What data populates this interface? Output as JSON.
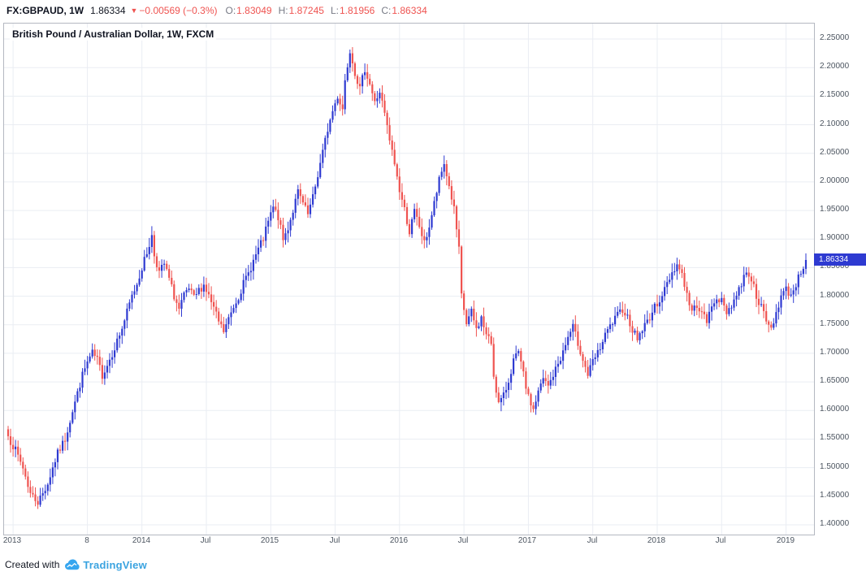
{
  "header": {
    "symbol": "FX:GBPAUD, 1W",
    "last": "1.86334",
    "change_arrow": "▼",
    "change": "−0.00569 (−0.3%)",
    "ohlc": [
      {
        "k": "O:",
        "v": "1.83049"
      },
      {
        "k": "H:",
        "v": "1.87245"
      },
      {
        "k": "L:",
        "v": "1.81956"
      },
      {
        "k": "C:",
        "v": "1.86334"
      }
    ]
  },
  "pane": {
    "legend": "British Pound / Australian Dollar, 1W, FXCM"
  },
  "price_axis": {
    "labels": [
      "2.25000",
      "2.20000",
      "2.15000",
      "2.10000",
      "2.05000",
      "2.00000",
      "1.95000",
      "1.90000",
      "1.85000",
      "1.80000",
      "1.75000",
      "1.70000",
      "1.65000",
      "1.60000",
      "1.55000",
      "1.50000",
      "1.45000",
      "1.40000"
    ],
    "badge": "1.86334"
  },
  "time_axis": {
    "ticks": [
      {
        "label": "2013",
        "week": 2
      },
      {
        "label": "8",
        "week": 32
      },
      {
        "label": "2014",
        "week": 54
      },
      {
        "label": "Jul",
        "week": 80
      },
      {
        "label": "2015",
        "week": 106
      },
      {
        "label": "Jul",
        "week": 132
      },
      {
        "label": "2016",
        "week": 158
      },
      {
        "label": "Jul",
        "week": 184
      },
      {
        "label": "2017",
        "week": 210
      },
      {
        "label": "Jul",
        "week": 236
      },
      {
        "label": "2018",
        "week": 262
      },
      {
        "label": "Jul",
        "week": 288
      },
      {
        "label": "2019",
        "week": 314
      }
    ]
  },
  "footer": {
    "created_with": "Created with",
    "brand": "TradingView"
  },
  "chart_data": {
    "type": "candlestick",
    "title": "British Pound / Australian Dollar",
    "symbol": "FX:GBPAUD",
    "timeframe": "1W",
    "exchange": "FXCM",
    "price_min": 1.4,
    "price_max": 2.25,
    "grid_step": 0.05,
    "weeks": 323,
    "up_color": "#2e3ad1",
    "down_color": "#ef5350",
    "grid_color": "#eaedf3",
    "last_bar": {
      "open": 1.83049,
      "high": 1.87245,
      "low": 1.81956,
      "close": 1.86334
    },
    "last_close": 1.86334,
    "anchors": [
      [
        0,
        1.555
      ],
      [
        3,
        1.53
      ],
      [
        6,
        1.5
      ],
      [
        9,
        1.455
      ],
      [
        12,
        1.44
      ],
      [
        14,
        1.455
      ],
      [
        16,
        1.472
      ],
      [
        18,
        1.5
      ],
      [
        20,
        1.525
      ],
      [
        23,
        1.55
      ],
      [
        26,
        1.6
      ],
      [
        28,
        1.63
      ],
      [
        30,
        1.662
      ],
      [
        32,
        1.684
      ],
      [
        34,
        1.7
      ],
      [
        36,
        1.688
      ],
      [
        38,
        1.662
      ],
      [
        40,
        1.68
      ],
      [
        42,
        1.7
      ],
      [
        44,
        1.722
      ],
      [
        46,
        1.744
      ],
      [
        48,
        1.772
      ],
      [
        50,
        1.8
      ],
      [
        52,
        1.822
      ],
      [
        54,
        1.85
      ],
      [
        56,
        1.876
      ],
      [
        58,
        1.905
      ],
      [
        59,
        1.872
      ],
      [
        61,
        1.842
      ],
      [
        63,
        1.856
      ],
      [
        65,
        1.83
      ],
      [
        67,
        1.8
      ],
      [
        69,
        1.776
      ],
      [
        71,
        1.8
      ],
      [
        73,
        1.812
      ],
      [
        75,
        1.796
      ],
      [
        77,
        1.81
      ],
      [
        79,
        1.82
      ],
      [
        81,
        1.8
      ],
      [
        83,
        1.778
      ],
      [
        85,
        1.755
      ],
      [
        87,
        1.738
      ],
      [
        89,
        1.76
      ],
      [
        91,
        1.782
      ],
      [
        93,
        1.8
      ],
      [
        95,
        1.822
      ],
      [
        97,
        1.84
      ],
      [
        99,
        1.862
      ],
      [
        101,
        1.882
      ],
      [
        103,
        1.9
      ],
      [
        105,
        1.93
      ],
      [
        107,
        1.955
      ],
      [
        109,
        1.938
      ],
      [
        111,
        1.898
      ],
      [
        113,
        1.92
      ],
      [
        115,
        1.95
      ],
      [
        117,
        1.982
      ],
      [
        119,
        1.962
      ],
      [
        121,
        1.942
      ],
      [
        123,
        1.972
      ],
      [
        125,
        2.012
      ],
      [
        127,
        2.052
      ],
      [
        129,
        2.092
      ],
      [
        131,
        2.124
      ],
      [
        133,
        2.15
      ],
      [
        135,
        2.128
      ],
      [
        136,
        2.178
      ],
      [
        138,
        2.232
      ],
      [
        140,
        2.192
      ],
      [
        142,
        2.162
      ],
      [
        144,
        2.198
      ],
      [
        146,
        2.172
      ],
      [
        148,
        2.138
      ],
      [
        150,
        2.158
      ],
      [
        152,
        2.118
      ],
      [
        154,
        2.072
      ],
      [
        156,
        2.032
      ],
      [
        158,
        1.985
      ],
      [
        160,
        1.952
      ],
      [
        162,
        1.912
      ],
      [
        164,
        1.948
      ],
      [
        166,
        1.922
      ],
      [
        168,
        1.892
      ],
      [
        170,
        1.922
      ],
      [
        172,
        1.962
      ],
      [
        174,
        2.002
      ],
      [
        176,
        2.032
      ],
      [
        178,
        1.992
      ],
      [
        180,
        1.952
      ],
      [
        182,
        1.88
      ],
      [
        183,
        1.8
      ],
      [
        185,
        1.752
      ],
      [
        187,
        1.772
      ],
      [
        189,
        1.742
      ],
      [
        191,
        1.762
      ],
      [
        193,
        1.732
      ],
      [
        195,
        1.718
      ],
      [
        196,
        1.662
      ],
      [
        198,
        1.612
      ],
      [
        200,
        1.625
      ],
      [
        202,
        1.652
      ],
      [
        204,
        1.688
      ],
      [
        206,
        1.7
      ],
      [
        208,
        1.662
      ],
      [
        210,
        1.622
      ],
      [
        212,
        1.602
      ],
      [
        214,
        1.632
      ],
      [
        216,
        1.655
      ],
      [
        218,
        1.642
      ],
      [
        220,
        1.662
      ],
      [
        222,
        1.682
      ],
      [
        224,
        1.702
      ],
      [
        226,
        1.728
      ],
      [
        228,
        1.746
      ],
      [
        230,
        1.718
      ],
      [
        232,
        1.69
      ],
      [
        234,
        1.662
      ],
      [
        236,
        1.685
      ],
      [
        238,
        1.7
      ],
      [
        240,
        1.72
      ],
      [
        242,
        1.74
      ],
      [
        245,
        1.76
      ],
      [
        248,
        1.778
      ],
      [
        250,
        1.764
      ],
      [
        252,
        1.742
      ],
      [
        254,
        1.726
      ],
      [
        256,
        1.742
      ],
      [
        258,
        1.756
      ],
      [
        260,
        1.772
      ],
      [
        262,
        1.788
      ],
      [
        264,
        1.802
      ],
      [
        266,
        1.822
      ],
      [
        268,
        1.842
      ],
      [
        270,
        1.856
      ],
      [
        272,
        1.84
      ],
      [
        274,
        1.802
      ],
      [
        276,
        1.772
      ],
      [
        278,
        1.786
      ],
      [
        280,
        1.77
      ],
      [
        282,
        1.756
      ],
      [
        284,
        1.78
      ],
      [
        286,
        1.8
      ],
      [
        288,
        1.79
      ],
      [
        290,
        1.772
      ],
      [
        292,
        1.786
      ],
      [
        294,
        1.802
      ],
      [
        296,
        1.822
      ],
      [
        298,
        1.846
      ],
      [
        300,
        1.83
      ],
      [
        302,
        1.802
      ],
      [
        304,
        1.78
      ],
      [
        306,
        1.756
      ],
      [
        308,
        1.742
      ],
      [
        310,
        1.772
      ],
      [
        312,
        1.8
      ],
      [
        314,
        1.812
      ],
      [
        316,
        1.802
      ],
      [
        318,
        1.822
      ],
      [
        320,
        1.842
      ],
      [
        322,
        1.86334
      ]
    ]
  }
}
